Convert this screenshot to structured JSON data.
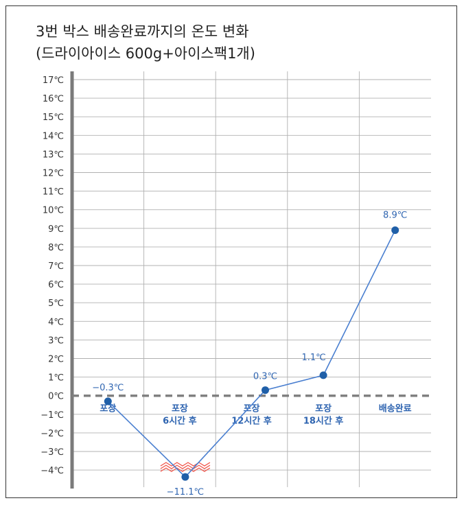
{
  "title_line1": "3번 박스 배송완료까지의 온도 변화",
  "title_line2": "(드라이아이스 600g+아이스팩1개)",
  "chart_data": {
    "type": "line",
    "x": [
      "포장",
      "포장\n6시간 후",
      "포장\n12시간 후",
      "포장\n18시간 후",
      "배송완료"
    ],
    "y_ticks": [
      "17℃",
      "16℃",
      "15℃",
      "14℃",
      "13℃",
      "12℃",
      "11℃",
      "10℃",
      "9℃",
      "8℃",
      "7℃",
      "6℃",
      "5℃",
      "4℃",
      "3℃",
      "2℃",
      "1℃",
      "0℃",
      "-1℃",
      "-2℃",
      "-3℃",
      "-4℃"
    ],
    "ylim": [
      -4,
      17
    ],
    "series": [
      {
        "values": [
          -0.3,
          -11.1,
          0.3,
          1.1,
          8.9
        ],
        "labels": [
          "−0.3℃",
          "−11.1℃",
          "0.3℃",
          "1.1℃",
          "8.9℃"
        ]
      }
    ],
    "axis_break": "zigzag below -4℃ (value -11.1 plotted off-scale)",
    "grid": true,
    "legend": "none",
    "colors": {
      "line": "#4a7fd0",
      "marker": "#1f5fa8",
      "label": "#2e64b0",
      "zero_line": "#808080",
      "axis": "#7a7a7a",
      "grid": "#b0b0b0",
      "break": "#f05a50"
    }
  }
}
